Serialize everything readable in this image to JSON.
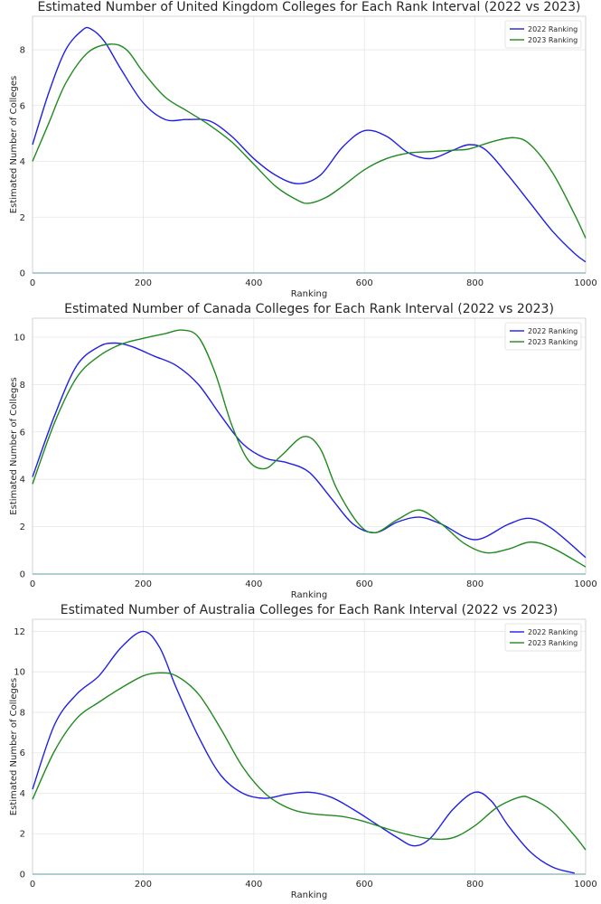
{
  "colors": {
    "s2022": "#1f1fe6",
    "s2023": "#1f8a1f"
  },
  "chart_data": [
    {
      "type": "line",
      "title": "Estimated Number of United Kingdom Colleges for Each Rank Interval (2022 vs 2023)",
      "xlabel": "Ranking",
      "ylabel": "Estimated Number of Colleges",
      "xlim": [
        0,
        1000
      ],
      "ylim": [
        0,
        9.2
      ],
      "xticks": [
        "0",
        "200",
        "400",
        "600",
        "800",
        "1000"
      ],
      "yticks": [
        "0",
        "2",
        "4",
        "6",
        "8"
      ],
      "legend": "top-right",
      "grid": true,
      "series": [
        {
          "name": "2022 Ranking",
          "color": "#1f1fe6",
          "x": [
            0,
            30,
            60,
            90,
            105,
            130,
            160,
            200,
            240,
            280,
            320,
            360,
            400,
            440,
            480,
            520,
            560,
            600,
            640,
            680,
            720,
            760,
            790,
            820,
            860,
            900,
            940,
            980,
            1000
          ],
          "y": [
            4.6,
            6.5,
            8.0,
            8.7,
            8.75,
            8.3,
            7.3,
            6.1,
            5.5,
            5.5,
            5.45,
            4.9,
            4.1,
            3.5,
            3.2,
            3.5,
            4.5,
            5.1,
            4.9,
            4.3,
            4.1,
            4.4,
            4.6,
            4.4,
            3.5,
            2.5,
            1.5,
            0.7,
            0.4
          ]
        },
        {
          "name": "2023 Ranking",
          "color": "#1f8a1f",
          "x": [
            0,
            30,
            60,
            100,
            140,
            170,
            200,
            240,
            280,
            320,
            360,
            400,
            440,
            480,
            500,
            530,
            560,
            600,
            640,
            680,
            720,
            760,
            790,
            830,
            870,
            900,
            940,
            980,
            1000
          ],
          "y": [
            4.0,
            5.4,
            6.8,
            7.9,
            8.2,
            8.0,
            7.2,
            6.3,
            5.8,
            5.3,
            4.7,
            3.9,
            3.1,
            2.6,
            2.5,
            2.7,
            3.1,
            3.7,
            4.1,
            4.3,
            4.35,
            4.4,
            4.45,
            4.7,
            4.85,
            4.6,
            3.6,
            2.1,
            1.25
          ]
        }
      ]
    },
    {
      "type": "line",
      "title": "Estimated Number of Canada Colleges for Each Rank Interval (2022 vs 2023)",
      "xlabel": "Ranking",
      "ylabel": "Estimated Number of Colleges",
      "xlim": [
        0,
        1000
      ],
      "ylim": [
        0,
        10.8
      ],
      "xticks": [
        "0",
        "200",
        "400",
        "600",
        "800",
        "1000"
      ],
      "yticks": [
        "0",
        "2",
        "4",
        "6",
        "8",
        "10"
      ],
      "legend": "top-right",
      "grid": true,
      "series": [
        {
          "name": "2022 Ranking",
          "color": "#1f1fe6",
          "x": [
            0,
            40,
            80,
            120,
            150,
            180,
            220,
            260,
            300,
            340,
            380,
            420,
            460,
            500,
            540,
            580,
            620,
            660,
            700,
            740,
            800,
            860,
            900,
            940,
            1000
          ],
          "y": [
            4.1,
            6.7,
            8.8,
            9.6,
            9.75,
            9.6,
            9.2,
            8.8,
            8.0,
            6.7,
            5.5,
            4.9,
            4.7,
            4.3,
            3.2,
            2.1,
            1.75,
            2.2,
            2.4,
            2.1,
            1.45,
            2.1,
            2.35,
            1.9,
            0.7
          ]
        },
        {
          "name": "2023 Ranking",
          "color": "#1f8a1f",
          "x": [
            0,
            40,
            80,
            120,
            160,
            200,
            240,
            270,
            300,
            330,
            360,
            390,
            420,
            450,
            490,
            520,
            550,
            590,
            620,
            660,
            700,
            740,
            780,
            820,
            860,
            900,
            940,
            1000
          ],
          "y": [
            3.8,
            6.4,
            8.3,
            9.2,
            9.7,
            9.95,
            10.15,
            10.3,
            10.0,
            8.5,
            6.3,
            4.8,
            4.45,
            5.0,
            5.8,
            5.3,
            3.6,
            2.1,
            1.75,
            2.3,
            2.7,
            2.1,
            1.3,
            0.9,
            1.05,
            1.35,
            1.1,
            0.3
          ]
        }
      ]
    },
    {
      "type": "line",
      "title": "Estimated Number of Australia Colleges for Each Rank Interval (2022 vs 2023)",
      "xlabel": "Ranking",
      "ylabel": "Estimated Number of Colleges",
      "xlim": [
        0,
        1000
      ],
      "ylim": [
        0,
        12.6
      ],
      "xticks": [
        "0",
        "200",
        "400",
        "600",
        "800",
        "1000"
      ],
      "yticks": [
        "0",
        "2",
        "4",
        "6",
        "8",
        "10",
        "12"
      ],
      "legend": "top-right",
      "grid": true,
      "series": [
        {
          "name": "2022 Ranking",
          "color": "#1f1fe6",
          "x": [
            0,
            40,
            80,
            120,
            160,
            200,
            230,
            260,
            300,
            340,
            380,
            420,
            460,
            500,
            540,
            580,
            620,
            660,
            690,
            720,
            760,
            800,
            830,
            860,
            900,
            940,
            980
          ],
          "y": [
            4.2,
            7.4,
            8.9,
            9.8,
            11.2,
            12.0,
            11.2,
            9.2,
            6.8,
            4.9,
            4.0,
            3.75,
            3.95,
            4.05,
            3.8,
            3.2,
            2.5,
            1.8,
            1.4,
            1.8,
            3.2,
            4.05,
            3.6,
            2.4,
            1.1,
            0.35,
            0.05
          ]
        },
        {
          "name": "2023 Ranking",
          "color": "#1f8a1f",
          "x": [
            0,
            40,
            80,
            120,
            160,
            200,
            230,
            260,
            300,
            340,
            380,
            420,
            460,
            500,
            560,
            600,
            640,
            680,
            720,
            760,
            800,
            840,
            880,
            900,
            940,
            980,
            1000
          ],
          "y": [
            3.7,
            6.1,
            7.7,
            8.5,
            9.2,
            9.8,
            9.95,
            9.8,
            8.9,
            7.2,
            5.3,
            4.0,
            3.3,
            3.0,
            2.85,
            2.6,
            2.25,
            1.95,
            1.75,
            1.8,
            2.4,
            3.3,
            3.8,
            3.75,
            3.1,
            1.9,
            1.2
          ]
        }
      ]
    }
  ]
}
